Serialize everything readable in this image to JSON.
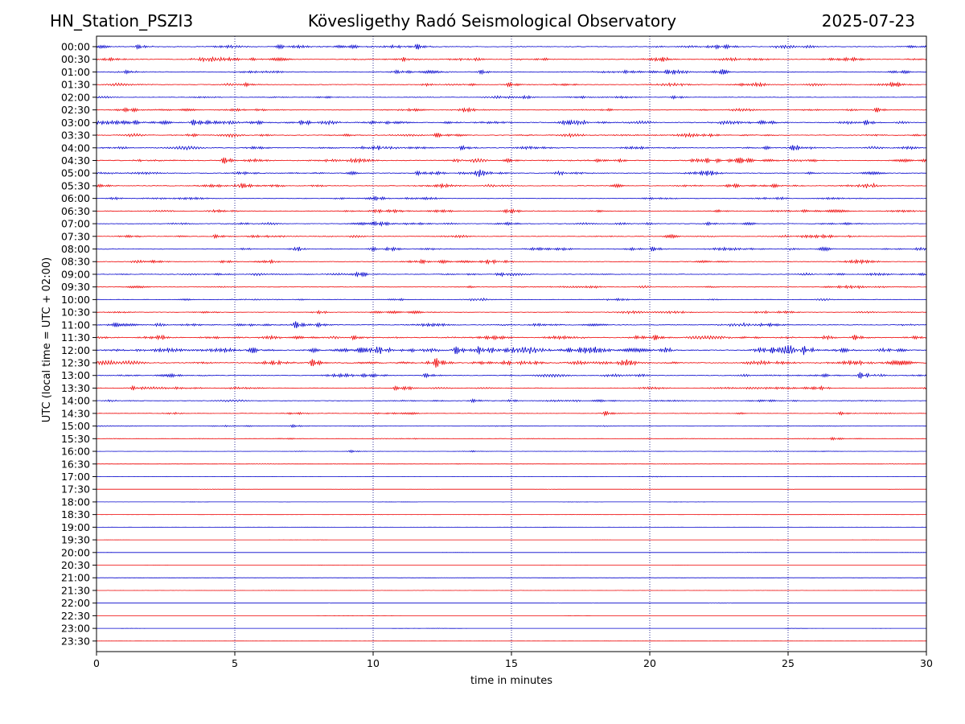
{
  "header": {
    "station": "HN_Station_PSZI3",
    "observatory": "Kövesligethy Radó Seismological Observatory",
    "date": "2025-07-23"
  },
  "colors": {
    "series_a": "#0000cc",
    "series_b": "#ee0000",
    "grid": "#000080",
    "axis": "#000000"
  },
  "chart_data": {
    "type": "line",
    "title": "Kövesligethy Radó Seismological Observatory",
    "xlabel": "time in minutes",
    "ylabel": "UTC (local time = UTC + 02:00)",
    "xlim": [
      0,
      30
    ],
    "xticks": [
      "0",
      "5",
      "10",
      "15",
      "20",
      "25",
      "30"
    ],
    "grid": "vertical dotted lines at every x tick",
    "row_labels": [
      "00:00",
      "00:30",
      "01:00",
      "01:30",
      "02:00",
      "02:30",
      "03:00",
      "03:30",
      "04:00",
      "04:30",
      "05:00",
      "05:30",
      "06:00",
      "06:30",
      "07:00",
      "07:30",
      "08:00",
      "08:30",
      "09:00",
      "09:30",
      "10:00",
      "10:30",
      "11:00",
      "11:30",
      "12:00",
      "12:30",
      "13:00",
      "13:30",
      "14:00",
      "14:30",
      "15:00",
      "15:30",
      "16:00",
      "16:30",
      "17:00",
      "17:30",
      "18:00",
      "18:30",
      "19:00",
      "19:30",
      "20:00",
      "20:30",
      "21:00",
      "21:30",
      "22:00",
      "22:30",
      "23:00",
      "23:30"
    ],
    "row_colors": "alternating blue (on the hour) and red (half hour)",
    "activity": [
      0.55,
      0.6,
      0.55,
      0.5,
      0.35,
      0.45,
      0.7,
      0.55,
      0.6,
      0.65,
      0.55,
      0.5,
      0.45,
      0.45,
      0.45,
      0.5,
      0.55,
      0.5,
      0.45,
      0.4,
      0.35,
      0.4,
      0.55,
      0.65,
      0.9,
      0.75,
      0.55,
      0.45,
      0.4,
      0.3,
      0.25,
      0.2,
      0.15,
      0.12,
      0.12,
      0.08,
      0.06,
      0.06,
      0.05,
      0.05,
      0.05,
      0.05,
      0.05,
      0.04,
      0.04,
      0.04,
      0.04,
      0.04
    ],
    "events": [
      {
        "row": 0,
        "t": 1.4,
        "amp": 1.2
      },
      {
        "row": 0,
        "t": 11.5,
        "amp": 1.4
      },
      {
        "row": 1,
        "t": 11.0,
        "amp": 1.3
      },
      {
        "row": 1,
        "t": 20.3,
        "amp": 1.2
      },
      {
        "row": 2,
        "t": 13.8,
        "amp": 1.1
      },
      {
        "row": 2,
        "t": 19.0,
        "amp": 1.0
      },
      {
        "row": 3,
        "t": 5.3,
        "amp": 1.0
      },
      {
        "row": 3,
        "t": 14.8,
        "amp": 1.1
      },
      {
        "row": 5,
        "t": 28.1,
        "amp": 1.1
      },
      {
        "row": 6,
        "t": 3.4,
        "amp": 1.6
      },
      {
        "row": 6,
        "t": 7.3,
        "amp": 1.3
      },
      {
        "row": 6,
        "t": 27.7,
        "amp": 1.3
      },
      {
        "row": 7,
        "t": 12.2,
        "amp": 1.0
      },
      {
        "row": 8,
        "t": 13.1,
        "amp": 1.2
      },
      {
        "row": 8,
        "t": 25.0,
        "amp": 1.3
      },
      {
        "row": 9,
        "t": 4.5,
        "amp": 1.8
      },
      {
        "row": 9,
        "t": 22.0,
        "amp": 1.1
      },
      {
        "row": 10,
        "t": 11.5,
        "amp": 1.1
      },
      {
        "row": 11,
        "t": 5.2,
        "amp": 1.0
      },
      {
        "row": 12,
        "t": 10.0,
        "amp": 1.0
      },
      {
        "row": 14,
        "t": 22.0,
        "amp": 0.9
      },
      {
        "row": 15,
        "t": 4.2,
        "amp": 1.0
      },
      {
        "row": 16,
        "t": 9.9,
        "amp": 1.1
      },
      {
        "row": 16,
        "t": 20.0,
        "amp": 1.0
      },
      {
        "row": 18,
        "t": 9.3,
        "amp": 1.5
      },
      {
        "row": 22,
        "t": 7.1,
        "amp": 2.0
      },
      {
        "row": 22,
        "t": 7.9,
        "amp": 1.2
      },
      {
        "row": 23,
        "t": 9.2,
        "amp": 1.2
      },
      {
        "row": 23,
        "t": 20.1,
        "amp": 1.5
      },
      {
        "row": 23,
        "t": 27.3,
        "amp": 1.4
      },
      {
        "row": 24,
        "t": 10.2,
        "amp": 1.3
      },
      {
        "row": 24,
        "t": 12.9,
        "amp": 2.2
      },
      {
        "row": 24,
        "t": 13.7,
        "amp": 1.8
      },
      {
        "row": 24,
        "t": 24.3,
        "amp": 1.6
      },
      {
        "row": 24,
        "t": 25.5,
        "amp": 1.9
      },
      {
        "row": 25,
        "t": 6.5,
        "amp": 1.4
      },
      {
        "row": 25,
        "t": 7.7,
        "amp": 2.0
      },
      {
        "row": 25,
        "t": 12.2,
        "amp": 2.6
      },
      {
        "row": 26,
        "t": 11.8,
        "amp": 1.2
      },
      {
        "row": 26,
        "t": 27.5,
        "amp": 1.7
      },
      {
        "row": 27,
        "t": 1.2,
        "amp": 1.0
      },
      {
        "row": 27,
        "t": 10.7,
        "amp": 1.0
      },
      {
        "row": 28,
        "t": 13.5,
        "amp": 0.9
      },
      {
        "row": 29,
        "t": 18.3,
        "amp": 1.2
      },
      {
        "row": 29,
        "t": 26.8,
        "amp": 0.8
      },
      {
        "row": 30,
        "t": 7.0,
        "amp": 0.7
      },
      {
        "row": 31,
        "t": 26.5,
        "amp": 0.7
      },
      {
        "row": 32,
        "t": 9.1,
        "amp": 0.6
      }
    ]
  }
}
